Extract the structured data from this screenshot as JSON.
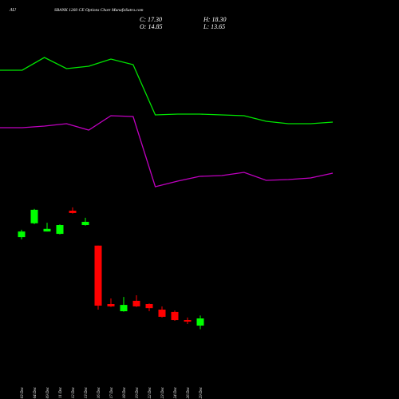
{
  "chart_data": {
    "type": "candlestick",
    "symbol": "AU",
    "title": "SBANK 1260  CE Options  Chart MunafaSutra.com",
    "info": [
      "C: 17.30",
      "H: 18.30",
      "O: 14.85",
      "L: 13.65"
    ],
    "categories": [
      "03 Dec",
      "04 Dec",
      "09 Dec",
      "11 Dec",
      "12 Dec",
      "13 Dec",
      "16 Dec",
      "17 Dec",
      "18 Dec",
      "19 Dec",
      "22 Dec",
      "23 Dec",
      "24 Dec",
      "26 Dec",
      "29 Dec"
    ],
    "open": [
      45.0,
      49.7,
      46.9,
      46.1,
      54.0,
      49.1,
      42.1,
      22.2,
      19.75,
      23.3,
      22.2,
      20.3,
      19.5,
      16.75,
      14.85
    ],
    "high": [
      47.5,
      54.6,
      49.9,
      49.3,
      55.1,
      51.6,
      42.1,
      24.1,
      24.6,
      25.2,
      22.4,
      21.4,
      20.0,
      17.6,
      18.3
    ],
    "low": [
      44.2,
      49.4,
      46.9,
      45.9,
      53.0,
      48.9,
      20.3,
      21.2,
      19.6,
      21.2,
      19.75,
      17.6,
      16.5,
      15.4,
      13.65
    ],
    "close": [
      46.9,
      54.3,
      47.8,
      49.1,
      53.2,
      50.2,
      21.65,
      21.4,
      21.9,
      21.4,
      20.8,
      17.85,
      16.75,
      16.2,
      17.3
    ],
    "up_color": "#00ff00",
    "down_color": "#ff0000",
    "ylim": [
      11.6,
      57.8
    ],
    "overlays": [
      {
        "color": "#00e600",
        "ylim": [
          0,
          100
        ],
        "values": [
          81,
          81,
          89,
          82,
          83.5,
          88,
          84.5,
          53,
          53.5,
          53.5,
          53,
          52.5,
          49,
          47.5,
          47.5,
          48.5
        ]
      },
      {
        "color": "#c000c0",
        "ylim": [
          0,
          100
        ],
        "values": [
          45,
          45,
          46,
          47.5,
          43.5,
          52.5,
          52,
          8,
          11.5,
          14.5,
          15,
          17,
          12,
          12.5,
          13.5,
          16.5
        ]
      }
    ]
  }
}
